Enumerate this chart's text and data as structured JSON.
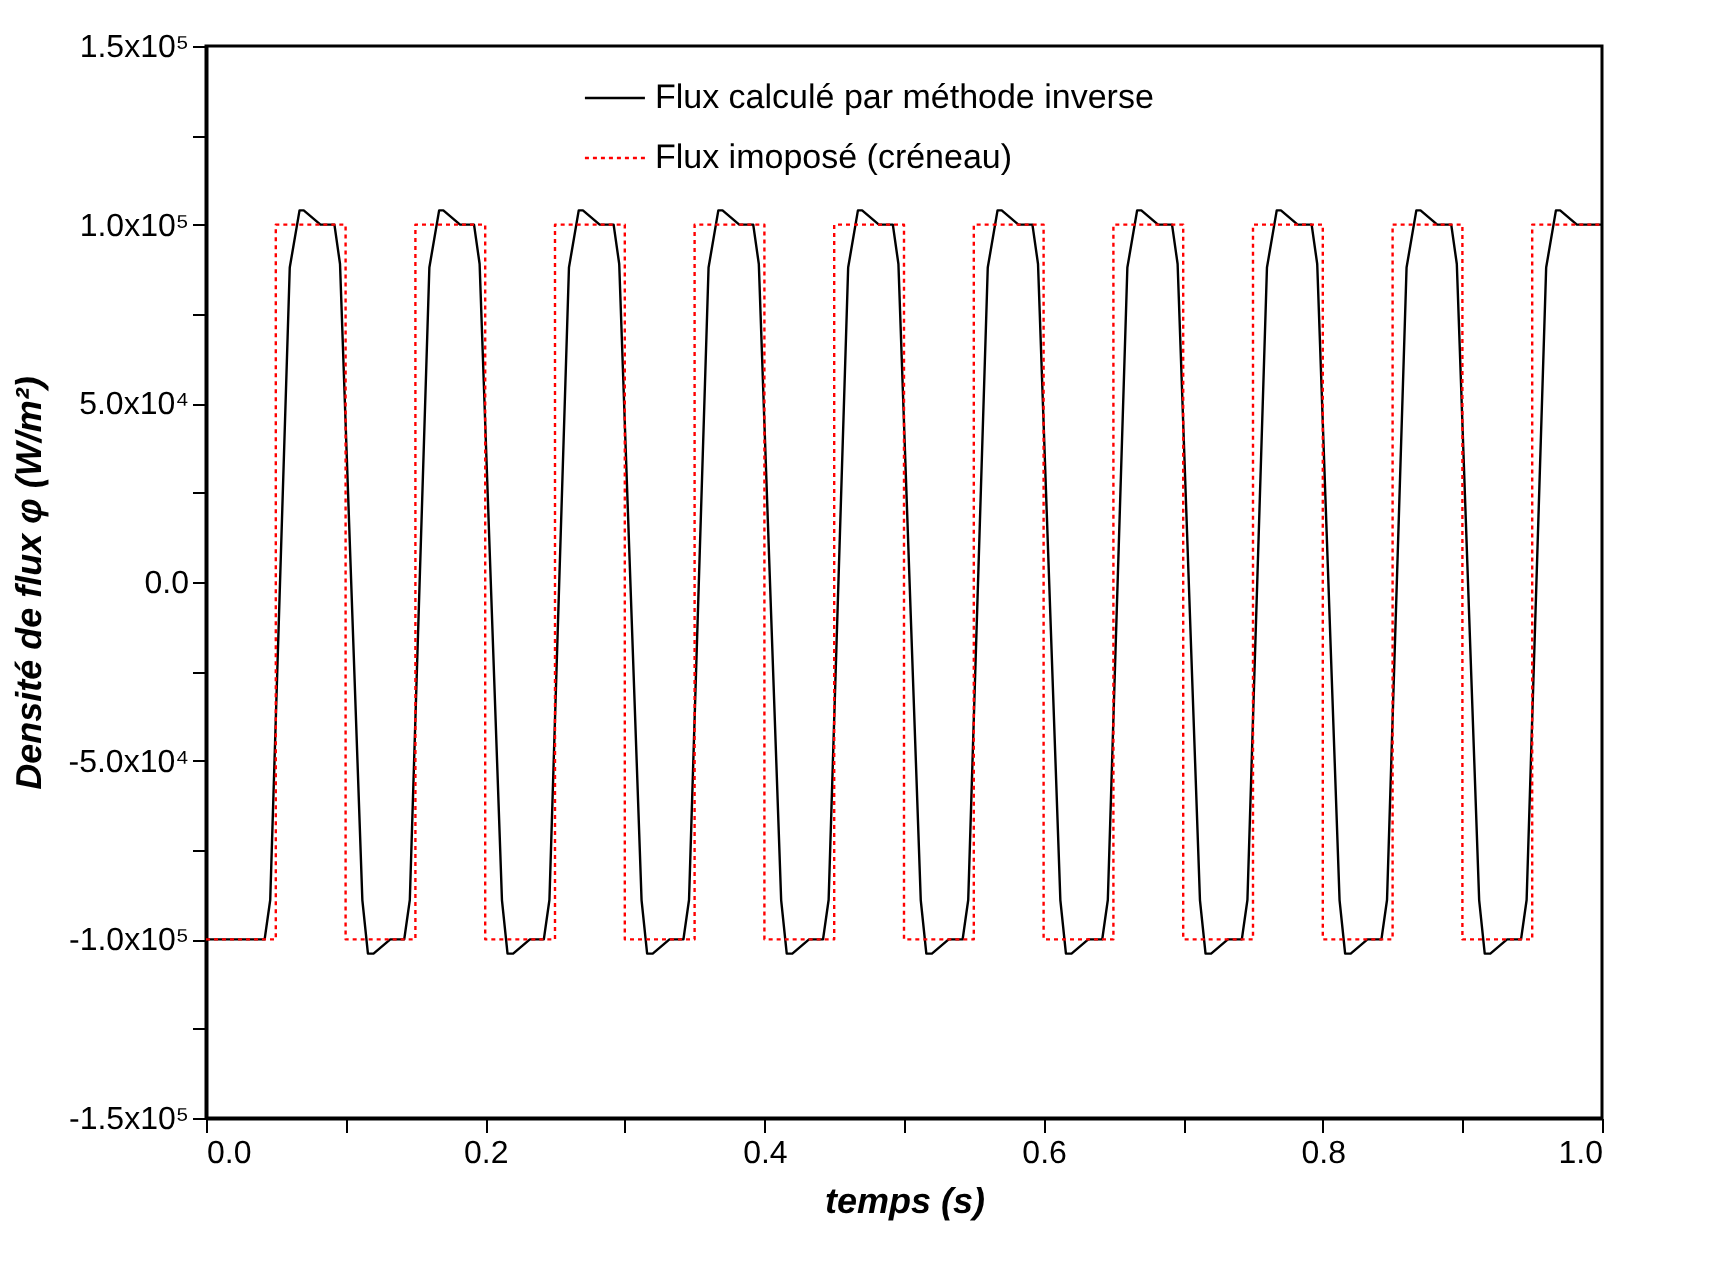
{
  "chart_data": {
    "type": "line",
    "xlabel": "temps (s)",
    "ylabel": "Densité de flux φ (W/m²)",
    "xlim": [
      0,
      1
    ],
    "ylim": [
      -150000,
      150000
    ],
    "xticks": [
      {
        "value": 0,
        "label": "0.0"
      },
      {
        "value": 0.1,
        "label": null
      },
      {
        "value": 0.2,
        "label": "0.2"
      },
      {
        "value": 0.3,
        "label": null
      },
      {
        "value": 0.4,
        "label": "0.4"
      },
      {
        "value": 0.5,
        "label": null
      },
      {
        "value": 0.6,
        "label": "0.6"
      },
      {
        "value": 0.7,
        "label": null
      },
      {
        "value": 0.8,
        "label": "0.8"
      },
      {
        "value": 0.9,
        "label": null
      },
      {
        "value": 1,
        "label": "1.0"
      }
    ],
    "yticks": [
      {
        "value": -150000,
        "label": "-1.5x10⁵"
      },
      {
        "value": -125000,
        "label": null
      },
      {
        "value": -100000,
        "label": "-1.0x10⁵"
      },
      {
        "value": -75000,
        "label": null
      },
      {
        "value": -50000,
        "label": "-5.0x10⁴"
      },
      {
        "value": -25000,
        "label": null
      },
      {
        "value": 0,
        "label": "0.0"
      },
      {
        "value": 25000,
        "label": null
      },
      {
        "value": 50000,
        "label": "5.0x10⁴"
      },
      {
        "value": 75000,
        "label": null
      },
      {
        "value": 100000,
        "label": "1.0x10⁵"
      },
      {
        "value": 125000,
        "label": null
      },
      {
        "value": 150000,
        "label": "1.5x10⁵"
      }
    ],
    "grid": false,
    "legend": "top",
    "series": [
      {
        "name": "Flux calculé par méthode inverse",
        "color": "#000000",
        "type": "line",
        "line_style": "solid",
        "x": [
          0,
          0.042,
          0.046,
          0.06,
          0.067,
          0.07,
          0.082,
          0.092,
          0.096,
          0.112,
          0.116,
          0.12,
          0.132,
          0.142,
          0.146,
          0.16,
          0.167,
          0.17,
          0.182,
          0.192,
          0.196,
          0.212,
          0.216,
          0.22,
          0.232,
          0.242,
          0.246,
          0.26,
          0.267,
          0.27,
          0.282,
          0.292,
          0.296,
          0.312,
          0.316,
          0.32,
          0.332,
          0.342,
          0.346,
          0.36,
          0.367,
          0.37,
          0.382,
          0.392,
          0.396,
          0.412,
          0.416,
          0.42,
          0.432,
          0.442,
          0.446,
          0.46,
          0.467,
          0.47,
          0.482,
          0.492,
          0.496,
          0.512,
          0.516,
          0.52,
          0.532,
          0.542,
          0.546,
          0.56,
          0.567,
          0.57,
          0.582,
          0.592,
          0.596,
          0.612,
          0.616,
          0.62,
          0.632,
          0.642,
          0.646,
          0.66,
          0.667,
          0.67,
          0.682,
          0.692,
          0.696,
          0.712,
          0.716,
          0.72,
          0.732,
          0.742,
          0.746,
          0.76,
          0.767,
          0.77,
          0.782,
          0.792,
          0.796,
          0.812,
          0.816,
          0.82,
          0.832,
          0.842,
          0.846,
          0.86,
          0.867,
          0.87,
          0.882,
          0.892,
          0.896,
          0.912,
          0.916,
          0.92,
          0.932,
          0.942,
          0.946,
          0.96,
          0.967,
          0.97,
          0.982,
          1.0
        ],
        "values": [
          -100000,
          -100000,
          -89000,
          88000,
          104000,
          104000,
          100000,
          100000,
          89000,
          -89000,
          -104000,
          -104000,
          -100000,
          -100000,
          -89000,
          88000,
          104000,
          104000,
          100000,
          100000,
          89000,
          -89000,
          -104000,
          -104000,
          -100000,
          -100000,
          -89000,
          88000,
          104000,
          104000,
          100000,
          100000,
          89000,
          -89000,
          -104000,
          -104000,
          -100000,
          -100000,
          -89000,
          88000,
          104000,
          104000,
          100000,
          100000,
          89000,
          -89000,
          -104000,
          -104000,
          -100000,
          -100000,
          -89000,
          88000,
          104000,
          104000,
          100000,
          100000,
          89000,
          -89000,
          -104000,
          -104000,
          -100000,
          -100000,
          -89000,
          88000,
          104000,
          104000,
          100000,
          100000,
          89000,
          -89000,
          -104000,
          -104000,
          -100000,
          -100000,
          -89000,
          88000,
          104000,
          104000,
          100000,
          100000,
          89000,
          -89000,
          -104000,
          -104000,
          -100000,
          -100000,
          -89000,
          88000,
          104000,
          104000,
          100000,
          100000,
          89000,
          -89000,
          -104000,
          -104000,
          -100000,
          -100000,
          -89000,
          88000,
          104000,
          104000,
          100000,
          100000,
          89000,
          -89000,
          -104000,
          -104000,
          -100000,
          -100000,
          -89000,
          88000,
          104000,
          104000,
          100000,
          100000
        ]
      },
      {
        "name": "Flux imoposé (créneau)",
        "color": "#ff0000",
        "type": "step",
        "line_style": "dotted",
        "x": [
          0,
          0.05,
          0.1,
          0.15,
          0.2,
          0.25,
          0.3,
          0.35,
          0.4,
          0.45,
          0.5,
          0.55,
          0.6,
          0.65,
          0.7,
          0.75,
          0.8,
          0.85,
          0.9,
          0.95,
          1.0
        ],
        "values": [
          -100000,
          100000,
          -100000,
          100000,
          -100000,
          100000,
          -100000,
          100000,
          -100000,
          100000,
          -100000,
          100000,
          -100000,
          100000,
          -100000,
          100000,
          -100000,
          100000,
          -100000,
          100000,
          100000
        ]
      }
    ]
  }
}
